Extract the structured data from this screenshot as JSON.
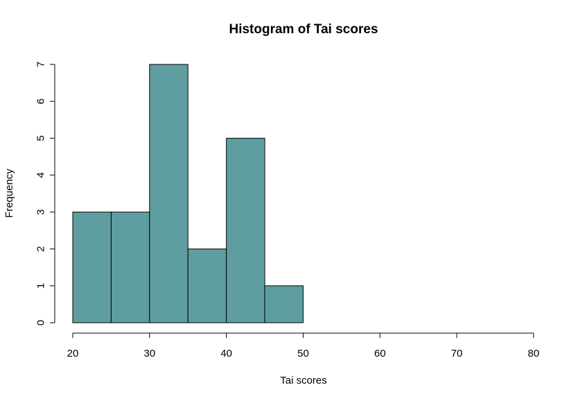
{
  "chart_data": {
    "type": "bar",
    "title": "Histogram of Tai scores",
    "xlabel": "Tai scores",
    "ylabel": "Frequency",
    "bins": [
      {
        "start": 20,
        "end": 25,
        "count": 3
      },
      {
        "start": 25,
        "end": 30,
        "count": 3
      },
      {
        "start": 30,
        "end": 35,
        "count": 7
      },
      {
        "start": 35,
        "end": 40,
        "count": 2
      },
      {
        "start": 40,
        "end": 45,
        "count": 5
      },
      {
        "start": 45,
        "end": 50,
        "count": 1
      }
    ],
    "xlim": [
      20,
      80
    ],
    "ylim": [
      0,
      7
    ],
    "xticks": [
      20,
      30,
      40,
      50,
      60,
      70,
      80
    ],
    "yticks": [
      0,
      1,
      2,
      3,
      4,
      5,
      6,
      7
    ],
    "bar_color": "#5f9ea0",
    "edge_color": "#000000",
    "grid": false,
    "legend": "none"
  }
}
